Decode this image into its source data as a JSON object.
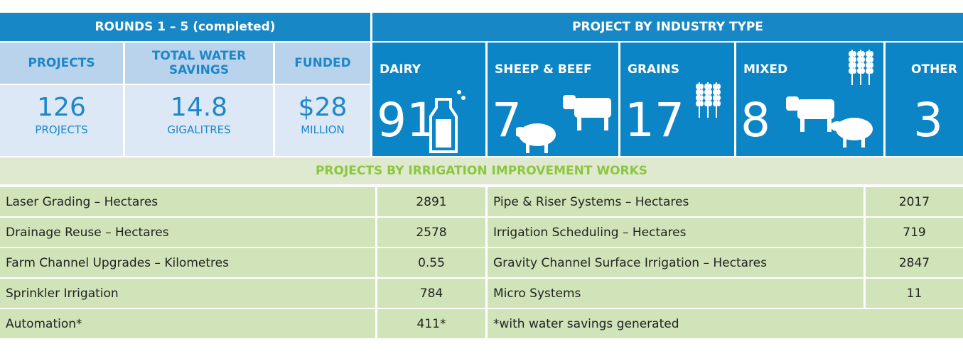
{
  "summary": {
    "title": "ROUNDS 1 – 5 (completed)",
    "columns": [
      {
        "label": "PROJECTS",
        "value": "126",
        "unit": "PROJECTS"
      },
      {
        "label": "TOTAL WATER SAVINGS",
        "value": "14.8",
        "unit": "GIGALITRES"
      },
      {
        "label": "FUNDED",
        "value": "$28",
        "unit": "MILLION"
      }
    ]
  },
  "industry": {
    "title": "PROJECT BY INDUSTRY TYPE",
    "items": [
      {
        "label": "DAIRY",
        "value": "91"
      },
      {
        "label": "SHEEP  & BEEF",
        "value": "7"
      },
      {
        "label": "GRAINS",
        "value": "17"
      },
      {
        "label": "MIXED",
        "value": "8"
      },
      {
        "label": "OTHER",
        "value": "3"
      }
    ]
  },
  "works": {
    "title": "PROJECTS BY IRRIGATION IMPROVEMENT WORKS",
    "rows": [
      [
        "Laser Grading – Hectares",
        "2891",
        "Pipe & Riser Systems – Hectares",
        "2017"
      ],
      [
        "Drainage Reuse – Hectares",
        "2578",
        "Irrigation Scheduling – Hectares",
        "719"
      ],
      [
        "Farm Channel Upgrades – Kilometres",
        "0.55",
        "Gravity Channel Surface Irrigation – Hectares",
        "2847"
      ],
      [
        "Sprinkler Irrigation",
        "784",
        "Micro Systems",
        "11"
      ],
      [
        "Automation*",
        "411*",
        "*with water savings generated"
      ]
    ]
  }
}
